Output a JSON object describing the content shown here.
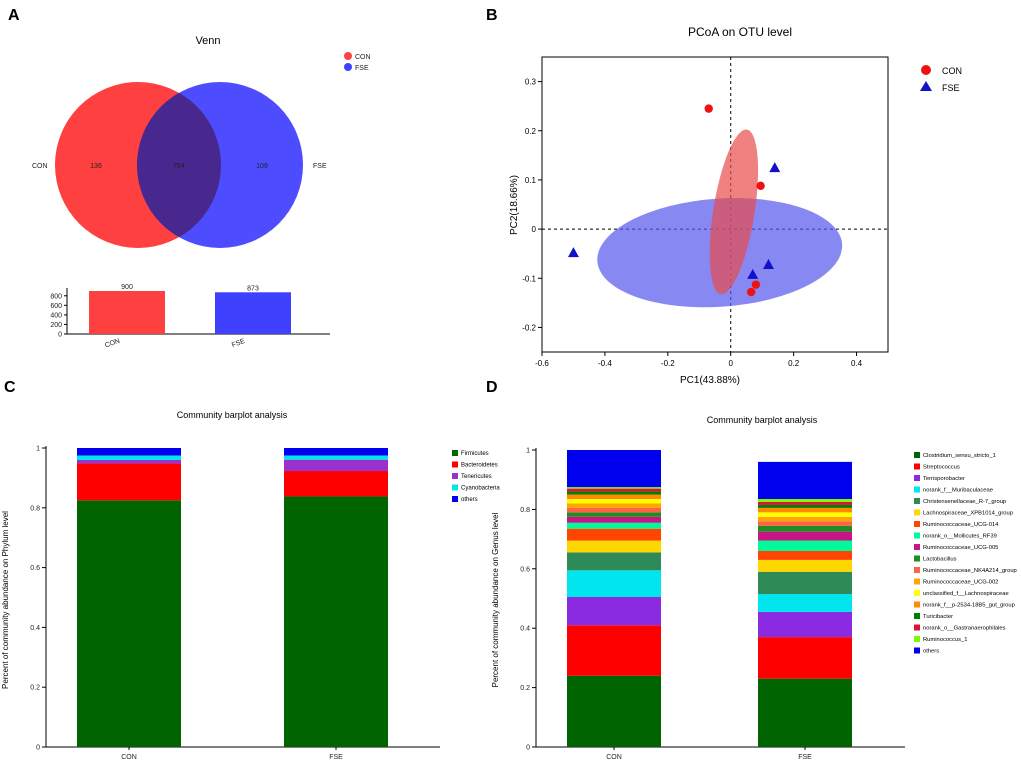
{
  "panels": {
    "A": "A",
    "B": "B",
    "C": "C",
    "D": "D"
  },
  "chart_data": [
    {
      "type": "venn",
      "panel": "A",
      "title": "Venn",
      "sets": [
        {
          "name": "CON",
          "color": "#ff4040",
          "unique": 136
        },
        {
          "name": "FSE",
          "color": "#4040ff",
          "unique": 109
        }
      ],
      "overlap": 764,
      "legend": [
        {
          "name": "CON",
          "color": "#ff4040"
        },
        {
          "name": "FSE",
          "color": "#4040ff"
        }
      ],
      "legend_position": "top-right",
      "bar": {
        "categories": [
          "CON",
          "FSE"
        ],
        "values": [
          900,
          873
        ],
        "value_labels": [
          "900",
          "873"
        ],
        "colors": [
          "#ff4040",
          "#4040ff"
        ],
        "ylim": [
          0,
          900
        ],
        "yticks": [
          0,
          200,
          400,
          600,
          800
        ],
        "ytick_labels": [
          "0",
          "200",
          "400",
          "600",
          "800"
        ]
      }
    },
    {
      "type": "scatter",
      "panel": "B",
      "title": "PCoA on OTU level",
      "xlabel": "PC1(43.88%)",
      "ylabel": "PC2(18.66%)",
      "xlim": [
        -0.6,
        0.5
      ],
      "ylim": [
        -0.25,
        0.35
      ],
      "xticks": [
        -0.6,
        -0.4,
        -0.2,
        0,
        0.2,
        0.4
      ],
      "xtick_labels": [
        "-0.6",
        "-0.4",
        "-0.2",
        "0",
        "0.2",
        "0.4"
      ],
      "yticks": [
        -0.2,
        -0.1,
        0,
        0.1,
        0.2,
        0.3
      ],
      "ytick_labels": [
        "-0.2",
        "-0.1",
        "0",
        "0.1",
        "0.2",
        "0.3"
      ],
      "legend_position": "top-right",
      "series": [
        {
          "name": "CON",
          "marker": "circle",
          "color": "#ee1111",
          "points": [
            [
              -0.07,
              0.245
            ],
            [
              0.095,
              0.088
            ],
            [
              0.065,
              -0.128
            ],
            [
              0.08,
              -0.113
            ]
          ],
          "ellipse": {
            "cx": 0.01,
            "cy": 0.035,
            "rx": 0.265,
            "ry": 0.042,
            "angle_deg": 81,
            "color": "#e84b4b",
            "opacity": 0.7
          }
        },
        {
          "name": "FSE",
          "marker": "triangle",
          "color": "#1111cc",
          "points": [
            [
              -0.5,
              -0.048
            ],
            [
              0.14,
              0.125
            ],
            [
              0.12,
              -0.072
            ],
            [
              0.07,
              -0.092
            ]
          ],
          "ellipse": {
            "cx": -0.035,
            "cy": -0.048,
            "rx": 0.39,
            "ry": 0.11,
            "angle_deg": 4,
            "color": "#5555ee",
            "opacity": 0.7
          }
        }
      ]
    },
    {
      "type": "stacked_bar",
      "panel": "C",
      "title": "Community barplot analysis",
      "ylabel": "Percent of community abundance on Phylum level",
      "categories": [
        "CON",
        "FSE"
      ],
      "ylim": [
        0,
        1
      ],
      "yticks": [
        0,
        0.2,
        0.4,
        0.6,
        0.8,
        1
      ],
      "ytick_labels": [
        "0",
        "0.2",
        "0.4",
        "0.6",
        "0.8",
        "1"
      ],
      "legend_position": "right",
      "series": [
        {
          "name": "Firmicutes",
          "color": "#006400",
          "values": [
            0.825,
            0.838
          ]
        },
        {
          "name": "Bacteroidetes",
          "color": "#ff0000",
          "values": [
            0.123,
            0.085
          ]
        },
        {
          "name": "Tenericutes",
          "color": "#9932cc",
          "values": [
            0.012,
            0.038
          ]
        },
        {
          "name": "Cyanobacteria",
          "color": "#00e5ee",
          "values": [
            0.015,
            0.014
          ]
        },
        {
          "name": "others",
          "color": "#0000ee",
          "values": [
            0.025,
            0.025
          ]
        }
      ]
    },
    {
      "type": "stacked_bar",
      "panel": "D",
      "title": "Community barplot analysis",
      "ylabel": "Percent of community abundance on Genus level",
      "categories": [
        "CON",
        "FSE"
      ],
      "ylim": [
        0,
        1
      ],
      "yticks": [
        0,
        0.2,
        0.4,
        0.6,
        0.8,
        1
      ],
      "ytick_labels": [
        "0",
        "0.2",
        "0.4",
        "0.6",
        "0.8",
        "1"
      ],
      "legend_position": "right",
      "series": [
        {
          "name": "Clostridium_sensu_stricto_1",
          "color": "#006400",
          "values": [
            0.24,
            0.23
          ]
        },
        {
          "name": "Streptococcus",
          "color": "#ff0000",
          "values": [
            0.17,
            0.14
          ]
        },
        {
          "name": "Terrisporobacter",
          "color": "#8a2be2",
          "values": [
            0.095,
            0.085
          ]
        },
        {
          "name": "norank_f__Muribaculaceae",
          "color": "#00e5ee",
          "values": [
            0.09,
            0.06
          ]
        },
        {
          "name": "Christensenellaceae_R-7_group",
          "color": "#2e8b57",
          "values": [
            0.06,
            0.075
          ]
        },
        {
          "name": "Lachnospiraceae_XPB1014_group",
          "color": "#ffd700",
          "values": [
            0.04,
            0.04
          ]
        },
        {
          "name": "Ruminococcaceae_UCG-014",
          "color": "#ff4500",
          "values": [
            0.04,
            0.03
          ]
        },
        {
          "name": "norank_o__Mollicutes_RF39",
          "color": "#00fa9a",
          "values": [
            0.02,
            0.035
          ]
        },
        {
          "name": "Ruminococcaceae_UCG-005",
          "color": "#c71585",
          "values": [
            0.02,
            0.03
          ]
        },
        {
          "name": "Lactobacillus",
          "color": "#228b22",
          "values": [
            0.015,
            0.02
          ]
        },
        {
          "name": "Ruminococcaceae_NK4A214_group",
          "color": "#ff6347",
          "values": [
            0.015,
            0.015
          ]
        },
        {
          "name": "Ruminococcaceae_UCG-002",
          "color": "#ffa500",
          "values": [
            0.015,
            0.015
          ]
        },
        {
          "name": "unclassified_f__Lachnospiraceae",
          "color": "#ffff00",
          "values": [
            0.015,
            0.015
          ]
        },
        {
          "name": "norank_f__p-2534-18B5_gut_group",
          "color": "#ff8c00",
          "values": [
            0.015,
            0.015
          ]
        },
        {
          "name": "Turicibacter",
          "color": "#008000",
          "values": [
            0.01,
            0.01
          ]
        },
        {
          "name": "norank_o__Gastranaerophilales",
          "color": "#dc143c",
          "values": [
            0.01,
            0.01
          ]
        },
        {
          "name": "Ruminococcus_1",
          "color": "#7cfc00",
          "values": [
            0.005,
            0.01
          ]
        },
        {
          "name": "others",
          "color": "#0000ee",
          "values": [
            0.125,
            0.125
          ]
        }
      ]
    }
  ]
}
